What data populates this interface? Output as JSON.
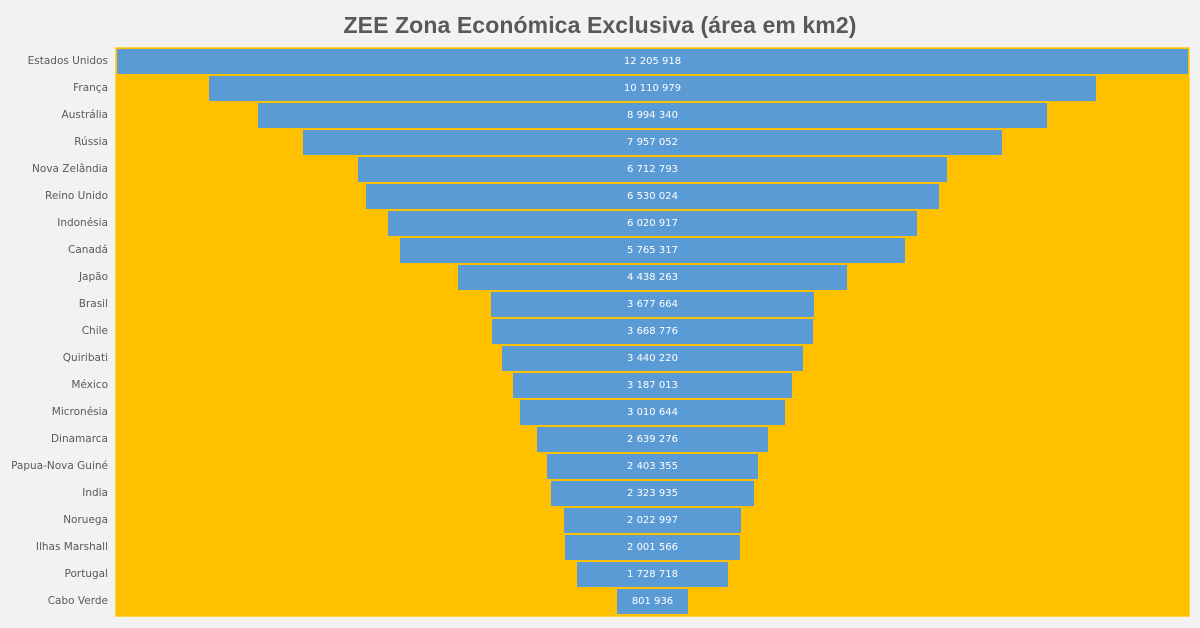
{
  "chart_data": {
    "type": "bar",
    "subtype": "funnel",
    "title": "ZEE Zona Económica Exclusiva (área em km2)",
    "xlabel": "",
    "ylabel": "",
    "grid": false,
    "legend": null,
    "orientation": "horizontal-centered",
    "categories": [
      "Estados Unidos",
      "França",
      "Austrália",
      "Rússia",
      "Nova Zelândia",
      "Reino Unido",
      "Indonésia",
      "Canadá",
      "Japão",
      "Brasil",
      "Chile",
      "Quiribati",
      "México",
      "Micronésia",
      "Dinamarca",
      "Papua-Nova Guiné",
      "India",
      "Noruega",
      "Ilhas Marshall",
      "Portugal",
      "Cabo Verde"
    ],
    "values": [
      12205918,
      10110979,
      8994340,
      7957052,
      6712793,
      6530024,
      6020917,
      5765317,
      4438263,
      3677664,
      3668776,
      3440220,
      3187013,
      3010644,
      2639276,
      2403355,
      2323935,
      2022997,
      2001566,
      1728718,
      801936
    ],
    "value_labels": [
      "12 205 918",
      "10 110 979",
      "8 994 340",
      "7 957 052",
      "6 712 793",
      "6 530 024",
      "6 020 917",
      "5 765 317",
      "4 438 263",
      "3 677 664",
      "3 668 776",
      "3 440 220",
      "3 187 013",
      "3 010 644",
      "2 639 276",
      "2 403 355",
      "2 323 935",
      "2 022 997",
      "2 001 566",
      "1 728 718",
      "801 936"
    ],
    "colors": {
      "bar": "#5b9bd5",
      "plot_background": "#ffc000",
      "page_background": "#f2f2f2",
      "title": "#595959",
      "label": "#595959",
      "value_label": "#ffffff"
    }
  }
}
